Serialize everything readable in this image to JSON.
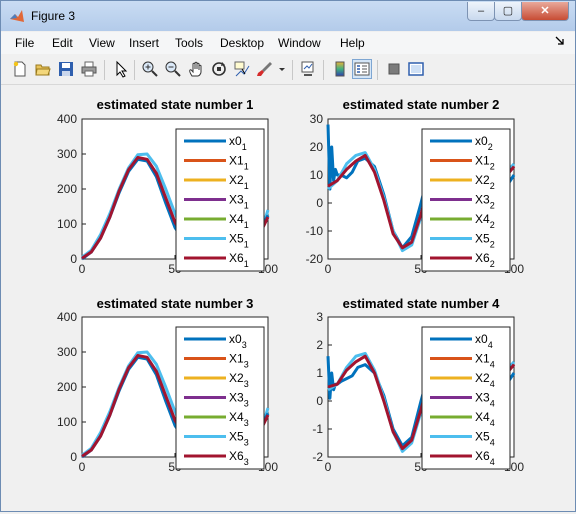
{
  "window": {
    "title": "Figure 3",
    "minimize": "–",
    "maximize": "▢",
    "close": "✕"
  },
  "menu": [
    "File",
    "Edit",
    "View",
    "Insert",
    "Tools",
    "Desktop",
    "Window",
    "Help"
  ],
  "menu_dock_icon": "dock-arrow-icon",
  "toolbar_icons": [
    "new-figure-icon",
    "open-file-icon",
    "save-icon",
    "print-icon",
    "pointer-icon",
    "zoom-in-icon",
    "zoom-out-icon",
    "pan-hand-icon",
    "rotate-3d-icon",
    "data-cursor-icon",
    "brush-icon",
    "brush-dropdown-icon",
    "link-plot-icon",
    "colorbar-icon",
    "legend-icon",
    "hide-plot-tools-icon",
    "show-plot-tools-icon"
  ],
  "colors": {
    "x0": "#0072bd",
    "x1": "#d95319",
    "x2": "#edb120",
    "x3": "#7e2f8e",
    "x4": "#77ac30",
    "x5": "#4dbeee",
    "x6": "#a2142f"
  },
  "chart_data": [
    {
      "type": "line",
      "title": "estimated state number 1",
      "xlim": [
        0,
        100
      ],
      "ylim": [
        0,
        400
      ],
      "xticks": [
        "0",
        "50",
        "100"
      ],
      "yticks": [
        "0",
        "100",
        "200",
        "300",
        "400"
      ],
      "legend": {
        "placement": "right-inside",
        "entries": [
          {
            "base": "x0",
            "sub": "1"
          },
          {
            "base": "X1",
            "sub": "1"
          },
          {
            "base": "X2",
            "sub": "1"
          },
          {
            "base": "X3",
            "sub": "1"
          },
          {
            "base": "X4",
            "sub": "1"
          },
          {
            "base": "X5",
            "sub": "1"
          },
          {
            "base": "X6",
            "sub": "1"
          }
        ]
      },
      "series": [
        {
          "key": "x5",
          "x": [
            0,
            5,
            10,
            15,
            20,
            25,
            30,
            35,
            40,
            45,
            50,
            55,
            60,
            65,
            70,
            75,
            80,
            85,
            90,
            95,
            100
          ],
          "values": [
            5,
            25,
            70,
            130,
            200,
            260,
            298,
            300,
            265,
            200,
            130,
            70,
            45,
            60,
            100,
            135,
            120,
            75,
            45,
            55,
            140
          ]
        },
        {
          "key": "x0",
          "x": [
            0,
            5,
            10,
            15,
            20,
            25,
            30,
            35,
            40,
            45,
            50,
            55,
            60,
            65,
            70,
            75,
            80,
            85,
            90,
            95,
            100
          ],
          "values": [
            0,
            20,
            60,
            120,
            190,
            250,
            285,
            280,
            235,
            160,
            90,
            50,
            45,
            75,
            115,
            125,
            95,
            55,
            45,
            75,
            125
          ]
        },
        {
          "key": "x6",
          "x": [
            0,
            5,
            10,
            15,
            20,
            25,
            30,
            35,
            40,
            45,
            50,
            55,
            60,
            65,
            70,
            75,
            80,
            85,
            90,
            95,
            100
          ],
          "values": [
            2,
            20,
            60,
            120,
            195,
            255,
            290,
            285,
            245,
            175,
            105,
            60,
            45,
            70,
            110,
            130,
            105,
            62,
            45,
            65,
            120
          ]
        }
      ]
    },
    {
      "type": "line",
      "title": "estimated state number 2",
      "xlim": [
        0,
        100
      ],
      "ylim": [
        -20,
        30
      ],
      "xticks": [
        "0",
        "50",
        "100"
      ],
      "yticks": [
        "-20",
        "-10",
        "0",
        "10",
        "20",
        "30"
      ],
      "legend": {
        "placement": "right-inside",
        "entries": [
          {
            "base": "x0",
            "sub": "2"
          },
          {
            "base": "X1",
            "sub": "2"
          },
          {
            "base": "X2",
            "sub": "2"
          },
          {
            "base": "X3",
            "sub": "2"
          },
          {
            "base": "X4",
            "sub": "2"
          },
          {
            "base": "X5",
            "sub": "2"
          },
          {
            "base": "X6",
            "sub": "2"
          }
        ]
      },
      "series": [
        {
          "key": "x0",
          "x": [
            0,
            1,
            2,
            3,
            4,
            5,
            7,
            10,
            13,
            16,
            20,
            25,
            30,
            35,
            40,
            45,
            50,
            55,
            60,
            65,
            70,
            75,
            80,
            85,
            90,
            95,
            100
          ],
          "values": [
            28,
            5,
            20,
            8,
            12,
            10,
            10,
            9,
            11,
            15,
            16,
            13,
            3,
            -10,
            -16,
            -12,
            0,
            13,
            16,
            10,
            -5,
            -10,
            -5,
            5,
            8,
            5,
            10
          ]
        },
        {
          "key": "x5",
          "x": [
            0,
            5,
            10,
            15,
            20,
            25,
            30,
            35,
            40,
            45,
            50,
            55,
            60,
            65,
            70,
            75,
            80,
            85,
            90,
            95,
            100
          ],
          "values": [
            5,
            8,
            14,
            17,
            18,
            12,
            2,
            -10,
            -17,
            -15,
            -5,
            8,
            16,
            14,
            3,
            -8,
            -10,
            -3,
            5,
            10,
            14
          ]
        },
        {
          "key": "x6",
          "x": [
            0,
            5,
            10,
            15,
            20,
            25,
            30,
            35,
            40,
            45,
            50,
            55,
            60,
            65,
            70,
            75,
            80,
            85,
            90,
            95,
            100
          ],
          "values": [
            6,
            8,
            12,
            15,
            17,
            11,
            1,
            -11,
            -16,
            -14,
            -4,
            9,
            15,
            13,
            2,
            -8,
            -9,
            -2,
            5,
            9,
            13
          ]
        }
      ]
    },
    {
      "type": "line",
      "title": "estimated state number 3",
      "xlim": [
        0,
        100
      ],
      "ylim": [
        0,
        400
      ],
      "xticks": [
        "0",
        "50",
        "100"
      ],
      "yticks": [
        "0",
        "100",
        "200",
        "300",
        "400"
      ],
      "legend": {
        "placement": "right-inside",
        "entries": [
          {
            "base": "x0",
            "sub": "3"
          },
          {
            "base": "X1",
            "sub": "3"
          },
          {
            "base": "X2",
            "sub": "3"
          },
          {
            "base": "X3",
            "sub": "3"
          },
          {
            "base": "X4",
            "sub": "3"
          },
          {
            "base": "X5",
            "sub": "3"
          },
          {
            "base": "X6",
            "sub": "3"
          }
        ]
      },
      "series": [
        {
          "key": "x5",
          "x": [
            0,
            5,
            10,
            15,
            20,
            25,
            30,
            35,
            40,
            45,
            50,
            55,
            60,
            65,
            70,
            75,
            80,
            85,
            90,
            95,
            100
          ],
          "values": [
            5,
            25,
            70,
            130,
            200,
            260,
            298,
            300,
            265,
            200,
            130,
            70,
            45,
            60,
            100,
            135,
            120,
            75,
            45,
            55,
            140
          ]
        },
        {
          "key": "x0",
          "x": [
            0,
            5,
            10,
            15,
            20,
            25,
            30,
            35,
            40,
            45,
            50,
            55,
            60,
            65,
            70,
            75,
            80,
            85,
            90,
            95,
            100
          ],
          "values": [
            0,
            20,
            60,
            120,
            190,
            250,
            285,
            280,
            235,
            160,
            90,
            50,
            45,
            75,
            115,
            125,
            95,
            55,
            45,
            75,
            125
          ]
        },
        {
          "key": "x6",
          "x": [
            0,
            5,
            10,
            15,
            20,
            25,
            30,
            35,
            40,
            45,
            50,
            55,
            60,
            65,
            70,
            75,
            80,
            85,
            90,
            95,
            100
          ],
          "values": [
            2,
            20,
            60,
            120,
            195,
            255,
            290,
            285,
            245,
            175,
            105,
            60,
            45,
            70,
            110,
            130,
            105,
            62,
            45,
            65,
            120
          ]
        }
      ]
    },
    {
      "type": "line",
      "title": "estimated state number 4",
      "xlim": [
        0,
        100
      ],
      "ylim": [
        -2,
        3
      ],
      "xticks": [
        "0",
        "50",
        "100"
      ],
      "yticks": [
        "-2",
        "-1",
        "0",
        "1",
        "2",
        "3"
      ],
      "legend": {
        "placement": "right-inside",
        "entries": [
          {
            "base": "x0",
            "sub": "4"
          },
          {
            "base": "X1",
            "sub": "4"
          },
          {
            "base": "X2",
            "sub": "4"
          },
          {
            "base": "X3",
            "sub": "4"
          },
          {
            "base": "X4",
            "sub": "4"
          },
          {
            "base": "X5",
            "sub": "4"
          },
          {
            "base": "X6",
            "sub": "4"
          }
        ]
      },
      "series": [
        {
          "key": "x0",
          "x": [
            0,
            1,
            2,
            3,
            4,
            5,
            7,
            10,
            13,
            16,
            20,
            25,
            30,
            35,
            40,
            45,
            50,
            55,
            60,
            65,
            70,
            75,
            80,
            85,
            90,
            95,
            100
          ],
          "values": [
            1.6,
            0.1,
            1.0,
            0.4,
            0.6,
            0.6,
            0.7,
            0.8,
            0.9,
            1.2,
            1.3,
            1.0,
            0.2,
            -1.0,
            -1.6,
            -1.3,
            0,
            1.2,
            1.5,
            1.0,
            -0.4,
            -1.0,
            -0.5,
            0.4,
            0.8,
            0.5,
            1.0
          ]
        },
        {
          "key": "x5",
          "x": [
            0,
            5,
            10,
            15,
            20,
            25,
            30,
            35,
            40,
            45,
            50,
            55,
            60,
            65,
            70,
            75,
            80,
            85,
            90,
            95,
            100
          ],
          "values": [
            0.4,
            0.6,
            1.2,
            1.6,
            1.7,
            1.1,
            0.1,
            -1.1,
            -1.8,
            -1.5,
            -0.4,
            0.8,
            1.6,
            1.4,
            0.2,
            -0.8,
            -1.0,
            -0.3,
            0.5,
            1.0,
            1.4
          ]
        },
        {
          "key": "x6",
          "x": [
            0,
            5,
            10,
            15,
            20,
            25,
            30,
            35,
            40,
            45,
            50,
            55,
            60,
            65,
            70,
            75,
            80,
            85,
            90,
            95,
            100
          ],
          "values": [
            0.5,
            0.6,
            1.1,
            1.4,
            1.6,
            1.0,
            0.0,
            -1.1,
            -1.7,
            -1.4,
            -0.3,
            0.9,
            1.5,
            1.3,
            0.1,
            -0.8,
            -0.9,
            -0.2,
            0.5,
            0.9,
            1.3
          ]
        }
      ]
    }
  ]
}
